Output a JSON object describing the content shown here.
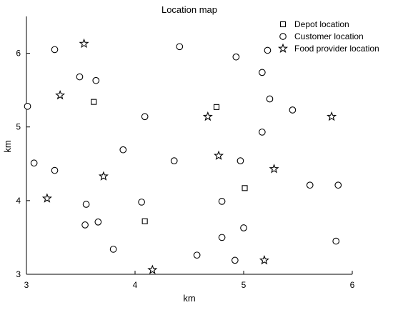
{
  "chart_data": {
    "type": "scatter",
    "title": "Location map",
    "xlabel": "km",
    "ylabel": "km",
    "xlim": [
      3,
      6
    ],
    "ylim": [
      3,
      6.5
    ],
    "xticks": [
      "3",
      "4",
      "5",
      "6"
    ],
    "yticks": [
      "3",
      "4",
      "5",
      "6"
    ],
    "grid": false,
    "legend_position": "top-right",
    "series": [
      {
        "name": "Depot location",
        "marker": "square",
        "points": [
          [
            3.62,
            5.34
          ],
          [
            4.75,
            5.27
          ],
          [
            5.01,
            4.17
          ],
          [
            4.09,
            3.72
          ]
        ]
      },
      {
        "name": "Customer location",
        "marker": "circle",
        "points": [
          [
            3.26,
            6.05
          ],
          [
            4.41,
            6.09
          ],
          [
            4.93,
            5.95
          ],
          [
            5.22,
            6.04
          ],
          [
            3.49,
            5.68
          ],
          [
            3.64,
            5.63
          ],
          [
            5.17,
            5.74
          ],
          [
            5.24,
            5.38
          ],
          [
            3.01,
            5.28
          ],
          [
            5.45,
            5.23
          ],
          [
            4.09,
            5.14
          ],
          [
            5.17,
            4.93
          ],
          [
            3.89,
            4.69
          ],
          [
            3.07,
            4.51
          ],
          [
            3.26,
            4.41
          ],
          [
            4.36,
            4.54
          ],
          [
            4.97,
            4.54
          ],
          [
            5.61,
            4.21
          ],
          [
            5.87,
            4.21
          ],
          [
            4.06,
            3.98
          ],
          [
            4.8,
            3.99
          ],
          [
            3.55,
            3.95
          ],
          [
            3.54,
            3.67
          ],
          [
            3.66,
            3.71
          ],
          [
            5.0,
            3.63
          ],
          [
            4.8,
            3.5
          ],
          [
            3.8,
            3.34
          ],
          [
            4.57,
            3.26
          ],
          [
            4.92,
            3.19
          ],
          [
            5.85,
            3.45
          ]
        ]
      },
      {
        "name": "Food provider location",
        "marker": "star",
        "points": [
          [
            3.53,
            6.13
          ],
          [
            3.31,
            5.43
          ],
          [
            4.67,
            5.14
          ],
          [
            5.81,
            5.14
          ],
          [
            4.77,
            4.61
          ],
          [
            5.28,
            4.43
          ],
          [
            3.71,
            4.33
          ],
          [
            3.19,
            4.03
          ],
          [
            4.16,
            3.06
          ],
          [
            5.19,
            3.19
          ]
        ]
      }
    ]
  }
}
